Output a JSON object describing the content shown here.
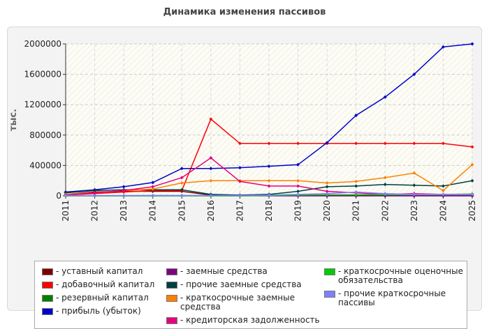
{
  "title": "Динамика изменения пассивов",
  "chart_data": {
    "type": "line",
    "ylabel": "тыс.",
    "xlabel": "",
    "ylim": [
      0,
      2000000
    ],
    "yticks": [
      0,
      400000,
      800000,
      1200000,
      1600000,
      2000000
    ],
    "grid": true,
    "legend_position": "bottom",
    "x": [
      "2011",
      "2012",
      "2013",
      "2014",
      "2015",
      "2016",
      "2017",
      "2018",
      "2019",
      "2020",
      "2021",
      "2022",
      "2023",
      "2024",
      "2025"
    ],
    "series": [
      {
        "name": "- уставный капитал",
        "color": "#800000",
        "values": [
          20000,
          50000,
          60000,
          60000,
          60000,
          10000,
          5000,
          2000,
          1000,
          1000,
          1000,
          1000,
          1000,
          1000,
          1000
        ]
      },
      {
        "name": "- добавочный капитал",
        "color": "#ff0000",
        "values": [
          10000,
          30000,
          50000,
          70000,
          70000,
          1010000,
          690000,
          690000,
          690000,
          690000,
          690000,
          690000,
          690000,
          690000,
          645000
        ]
      },
      {
        "name": "- резервный капитал",
        "color": "#008000",
        "values": [
          2000,
          3000,
          4000,
          5000,
          5000,
          5000,
          5000,
          5000,
          5000,
          5000,
          5000,
          5000,
          5000,
          5000,
          5000
        ]
      },
      {
        "name": "- прибыль (убыток)",
        "color": "#0000cc",
        "values": [
          50000,
          80000,
          120000,
          175000,
          360000,
          360000,
          370000,
          390000,
          410000,
          700000,
          1060000,
          1300000,
          1600000,
          1960000,
          2000000
        ]
      },
      {
        "name": "- заемные средства",
        "color": "#800080",
        "values": [
          1000,
          1000,
          1000,
          1000,
          1000,
          1000,
          1000,
          1000,
          1000,
          1000,
          1000,
          1000,
          1000,
          1000,
          1000
        ]
      },
      {
        "name": "- прочие заемные средства",
        "color": "#004040",
        "values": [
          40000,
          70000,
          80000,
          80000,
          80000,
          20000,
          10000,
          20000,
          60000,
          120000,
          130000,
          150000,
          140000,
          130000,
          200000
        ]
      },
      {
        "name": "- краткосрочные заемные средства",
        "color": "#ff8000",
        "values": [
          20000,
          40000,
          70000,
          90000,
          170000,
          200000,
          200000,
          200000,
          200000,
          170000,
          190000,
          240000,
          300000,
          70000,
          410000
        ]
      },
      {
        "name": "- кредиторская задолженность",
        "color": "#e6007e",
        "values": [
          10000,
          40000,
          70000,
          120000,
          240000,
          500000,
          190000,
          130000,
          130000,
          60000,
          40000,
          20000,
          30000,
          20000,
          20000
        ]
      },
      {
        "name": "- краткосрочные оценочные обязательства",
        "color": "#00cc00",
        "values": [
          0,
          0,
          0,
          0,
          0,
          0,
          0,
          5000,
          10000,
          15000,
          15000,
          20000,
          20000,
          20000,
          25000
        ]
      },
      {
        "name": "- прочие краткосрочные пассивы",
        "color": "#8080ff",
        "values": [
          3000,
          3000,
          3000,
          3000,
          3000,
          5000,
          5000,
          10000,
          20000,
          30000,
          50000,
          30000,
          20000,
          20000,
          20000
        ]
      }
    ]
  }
}
